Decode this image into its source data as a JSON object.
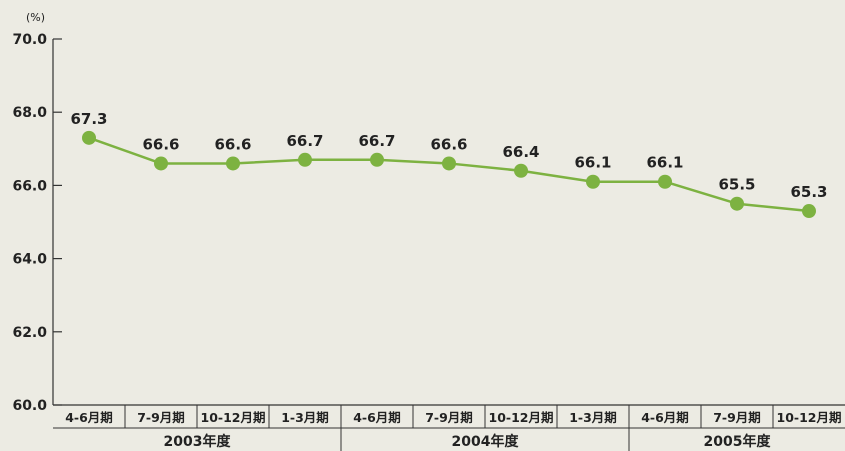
{
  "chart_data": {
    "type": "line",
    "unit": "(%)",
    "categories": [
      "4-6月期",
      "7-9月期",
      "10-12月期",
      "1-3月期",
      "4-6月期",
      "7-9月期",
      "10-12月期",
      "1-3月期",
      "4-6月期",
      "7-9月期",
      "10-12月期"
    ],
    "groups": [
      {
        "label": "2003年度",
        "start": 0,
        "end": 3
      },
      {
        "label": "2004年度",
        "start": 4,
        "end": 7
      },
      {
        "label": "2005年度",
        "start": 8,
        "end": 10
      }
    ],
    "series": [
      {
        "values": [
          67.3,
          66.6,
          66.6,
          66.7,
          66.7,
          66.6,
          66.4,
          66.1,
          66.1,
          65.5,
          65.3
        ]
      }
    ],
    "value_labels": [
      "67.3",
      "66.6",
      "66.6",
      "66.7",
      "66.7",
      "66.6",
      "66.4",
      "66.1",
      "66.1",
      "65.5",
      "65.3"
    ],
    "yticks": [
      "60.0",
      "62.0",
      "64.0",
      "66.0",
      "68.0",
      "70.0"
    ],
    "ylim": [
      60,
      70
    ],
    "grid": false,
    "colors": {
      "line": "#7db241",
      "marker": "#7db241",
      "axis": "#333333"
    }
  }
}
